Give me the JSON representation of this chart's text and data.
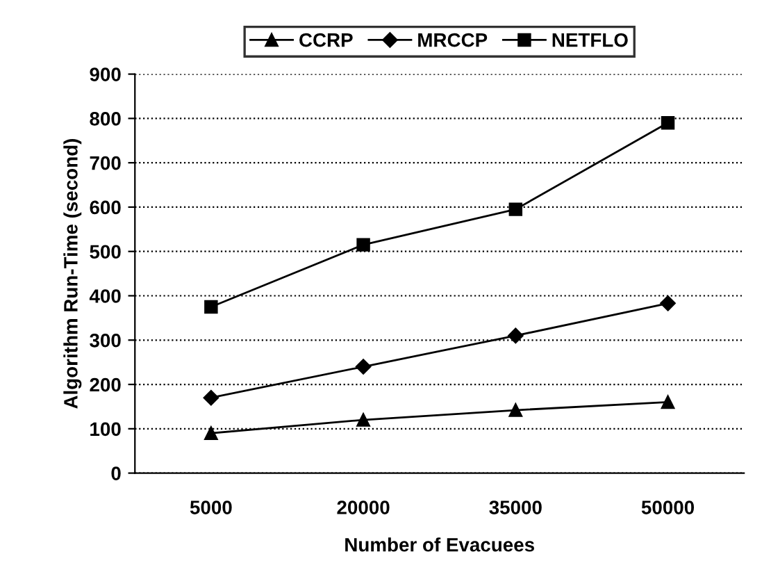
{
  "chart_data": {
    "type": "line",
    "xlabel": "Number of Evacuees",
    "ylabel": "Algorithm Run-Time (second)",
    "categories": [
      "5000",
      "20000",
      "35000",
      "50000"
    ],
    "series": [
      {
        "name": "CCRP",
        "color": "#000000",
        "marker": "triangle",
        "values": [
          90,
          120,
          142,
          160
        ]
      },
      {
        "name": "MRCCP",
        "color": "#000000",
        "marker": "diamond",
        "values": [
          170,
          240,
          310,
          383
        ]
      },
      {
        "name": "NETFLO",
        "color": "#000000",
        "marker": "square",
        "values": [
          375,
          515,
          595,
          790
        ]
      }
    ],
    "ylim": [
      0,
      900
    ],
    "yticks": [
      0,
      100,
      200,
      300,
      400,
      500,
      600,
      700,
      800,
      900
    ],
    "grid": "y",
    "legend": "top",
    "line_style": "solid"
  }
}
